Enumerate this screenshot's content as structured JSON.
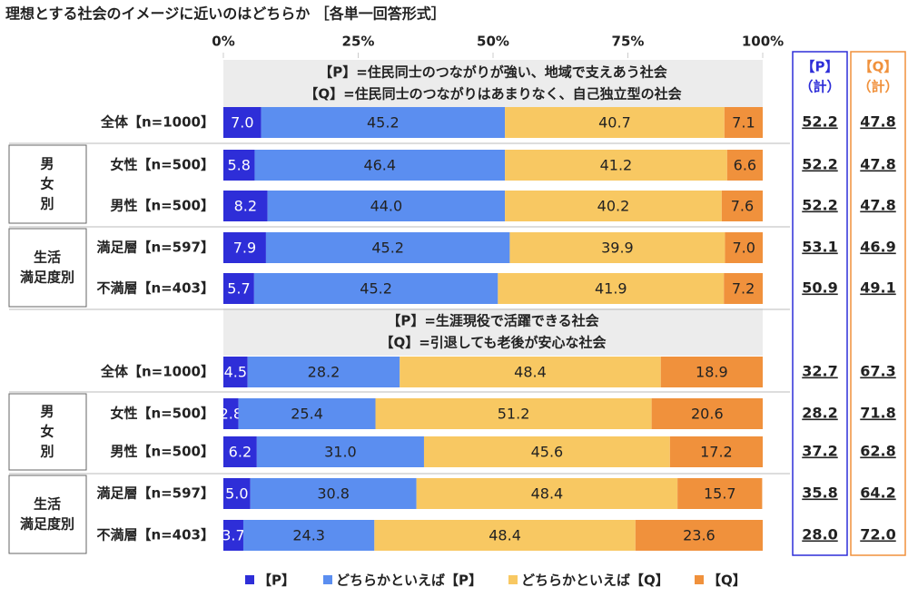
{
  "chart_data": {
    "type": "bar",
    "stacked": true,
    "orientation": "horizontal",
    "title": "理想とする社会のイメージに近いのはどちらか ［各単一回答形式］",
    "xlim": [
      0,
      100
    ],
    "xticks": [
      {
        "value": 0,
        "label": "0%"
      },
      {
        "value": 25,
        "label": "25%"
      },
      {
        "value": 50,
        "label": "50%"
      },
      {
        "value": 75,
        "label": "75%"
      },
      {
        "value": 100,
        "label": "100%"
      }
    ],
    "panels": [
      {
        "lines": [
          "【P】=住民同士のつながりが強い、地域で支えあう社会",
          "【Q】=住民同士のつながりはあまりなく、自己独立型の社会"
        ]
      },
      {
        "lines": [
          "【P】=生涯現役で活躍できる社会",
          "【Q】=引退しても老後が安心な社会"
        ]
      }
    ],
    "groups": [
      {
        "lines": [
          "男",
          "女",
          "別"
        ]
      },
      {
        "lines": [
          "生活",
          "満足度別"
        ]
      },
      {
        "lines": [
          "男",
          "女",
          "別"
        ]
      },
      {
        "lines": [
          "生活",
          "満足度別"
        ]
      }
    ],
    "categories": [
      "全体【n=1000】",
      "女性【n=500】",
      "男性【n=500】",
      "満足層【n=597】",
      "不満層【n=403】",
      "全体【n=1000】",
      "女性【n=500】",
      "男性【n=500】",
      "満足層【n=597】",
      "不満層【n=403】"
    ],
    "series": [
      {
        "name": "【P】",
        "color": "#2e2ed8",
        "values": [
          7.0,
          5.8,
          8.2,
          7.9,
          5.7,
          4.5,
          2.8,
          6.2,
          5.0,
          3.7
        ],
        "value_labels": [
          "7.0",
          "5.8",
          "8.2",
          "7.9",
          "5.7",
          "4.5",
          "2.8",
          "6.2",
          "5.0",
          "3.7"
        ]
      },
      {
        "name": "どちらかといえば【P】",
        "color": "#5b8ef0",
        "values": [
          45.2,
          46.4,
          44.0,
          45.2,
          45.2,
          28.2,
          25.4,
          31.0,
          30.8,
          24.3
        ],
        "value_labels": [
          "45.2",
          "46.4",
          "44.0",
          "45.2",
          "45.2",
          "28.2",
          "25.4",
          "31.0",
          "30.8",
          "24.3"
        ]
      },
      {
        "name": "どちらかといえば【Q】",
        "color": "#f8c862",
        "values": [
          40.7,
          41.2,
          40.2,
          39.9,
          41.9,
          48.4,
          51.2,
          45.6,
          48.4,
          48.4
        ],
        "value_labels": [
          "40.7",
          "41.2",
          "40.2",
          "39.9",
          "41.9",
          "48.4",
          "51.2",
          "45.6",
          "48.4",
          "48.4"
        ]
      },
      {
        "name": "【Q】",
        "color": "#f0913c",
        "values": [
          7.1,
          6.6,
          7.6,
          7.0,
          7.2,
          18.9,
          20.6,
          17.2,
          15.7,
          23.6
        ],
        "value_labels": [
          "7.1",
          "6.6",
          "7.6",
          "7.0",
          "7.2",
          "18.9",
          "20.6",
          "17.2",
          "15.7",
          "23.6"
        ]
      }
    ],
    "totals": [
      {
        "lines": [
          "【P】",
          "（計）"
        ],
        "color": "#2e2ed8",
        "values": [
          52.2,
          52.2,
          52.2,
          53.1,
          50.9,
          32.7,
          28.2,
          37.2,
          35.8,
          28.0
        ],
        "value_labels": [
          "52.2",
          "52.2",
          "52.2",
          "53.1",
          "50.9",
          "32.7",
          "28.2",
          "37.2",
          "35.8",
          "28.0"
        ]
      },
      {
        "lines": [
          "【Q】",
          "（計）"
        ],
        "color": "#f0913c",
        "values": [
          47.8,
          47.8,
          47.8,
          46.9,
          49.1,
          67.3,
          71.8,
          62.8,
          64.2,
          72.0
        ],
        "value_labels": [
          "47.8",
          "47.8",
          "47.8",
          "46.9",
          "49.1",
          "67.3",
          "71.8",
          "62.8",
          "64.2",
          "72.0"
        ]
      }
    ]
  }
}
